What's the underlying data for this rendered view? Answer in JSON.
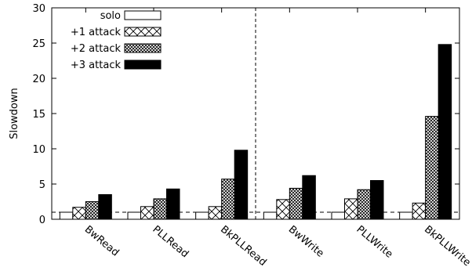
{
  "chart_data": {
    "type": "bar",
    "ylabel": "Slowdown",
    "ylim": [
      0,
      30
    ],
    "yticks": [
      0,
      5,
      10,
      15,
      20,
      25,
      30
    ],
    "categories": [
      "BwRead",
      "PLLRead",
      "BkPLLRead",
      "BwWrite",
      "PLLWrite",
      "BkPLLWrite"
    ],
    "series": [
      {
        "name": "solo",
        "values": [
          1.0,
          1.0,
          1.0,
          1.0,
          1.0,
          1.0
        ],
        "pattern": "white"
      },
      {
        "name": "+1 attack",
        "values": [
          1.7,
          1.8,
          1.8,
          2.8,
          2.9,
          2.3
        ],
        "pattern": "cross"
      },
      {
        "name": "+2 attack",
        "values": [
          2.5,
          2.9,
          5.7,
          4.4,
          4.2,
          14.6
        ],
        "pattern": "crosshatch"
      },
      {
        "name": "+3 attack",
        "values": [
          3.5,
          4.3,
          9.8,
          6.2,
          5.5,
          24.8
        ],
        "pattern": "black"
      }
    ],
    "reference_line": 1.0,
    "divider_after_category": 2,
    "legend_position": "top-left",
    "grid": false
  }
}
